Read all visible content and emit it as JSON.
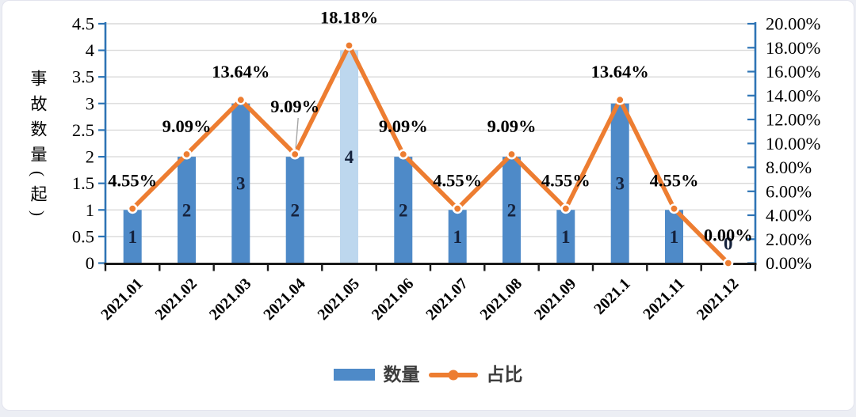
{
  "chart_data": {
    "type": "bar-line-combo",
    "categories": [
      "2021.01",
      "2021.02",
      "2021.03",
      "2021.04",
      "2021.05",
      "2021.06",
      "2021.07",
      "2021.08",
      "2021.09",
      "2021.1",
      "2021.11",
      "2021.12"
    ],
    "series": [
      {
        "name": "数量",
        "type": "bar",
        "axis": "left",
        "values": [
          1,
          2,
          3,
          2,
          4,
          2,
          1,
          2,
          1,
          3,
          1,
          0
        ],
        "data_labels": [
          "1",
          "2",
          "3",
          "2",
          "4",
          "2",
          "1",
          "2",
          "1",
          "3",
          "1",
          "0"
        ]
      },
      {
        "name": "占比",
        "type": "line",
        "axis": "right",
        "values": [
          4.55,
          9.09,
          13.64,
          9.09,
          18.18,
          9.09,
          4.55,
          9.09,
          4.55,
          13.64,
          4.55,
          0
        ],
        "data_labels": [
          "4.55%",
          "9.09%",
          "13.64%",
          "9.09%",
          "18.18%",
          "9.09%",
          "4.55%",
          "9.09%",
          "4.55%",
          "13.64%",
          "4.55%",
          "0.00%"
        ]
      }
    ],
    "left_axis": {
      "title": "事故数量(起)",
      "min": 0,
      "max": 4.5,
      "step": 0.5,
      "tick_labels": [
        "4.5",
        "4",
        "3.5",
        "3",
        "2.5",
        "2",
        "1.5",
        "1",
        "0.5",
        "0"
      ]
    },
    "right_axis": {
      "min": 0,
      "max": 20,
      "step": 2,
      "tick_labels": [
        "20.00%",
        "18.00%",
        "16.00%",
        "14.00%",
        "12.00%",
        "10.00%",
        "8.00%",
        "6.00%",
        "4.00%",
        "2.00%",
        "0.00%"
      ]
    },
    "legend": {
      "position": "bottom-center",
      "items": [
        {
          "label": "数量",
          "marker": "bar-swatch"
        },
        {
          "label": "占比",
          "marker": "line-dot"
        }
      ]
    },
    "grid": "horizontal",
    "highlight_index": 4,
    "label_overrides": {
      "3": {
        "dy": -53,
        "leader": true
      }
    },
    "colors": {
      "bar": "#4e8ac8",
      "bar_highlight": "#bdd7ee",
      "line": "#ed7d31",
      "marker_ring": "#ffffff",
      "value_axis": "#2e74b5",
      "bottom_axis": "#1a1a1a",
      "gridline": "#d9d9d9",
      "bar_label": "#15223c",
      "data_label": "#000000",
      "tick_label": "#000000",
      "leader_line": "#a6a6a6"
    }
  }
}
